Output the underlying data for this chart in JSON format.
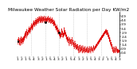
{
  "title": "Milwaukee Weather Solar Radiation per Day KW/m2",
  "background_color": "#ffffff",
  "line_color": "#dd0000",
  "marker_color": "#000000",
  "grid_color": "#bbbbbb",
  "ylim": [
    0.0,
    5.4
  ],
  "ytick_vals": [
    4.9,
    4.4,
    3.9,
    3.4,
    2.9,
    2.4,
    1.9,
    1.4,
    0.9,
    0.4
  ],
  "vline_positions": [
    52,
    104,
    157,
    210,
    262,
    314
  ],
  "title_fontsize": 4.2,
  "tick_fontsize": 3.2,
  "values": [
    1.8,
    2.1,
    1.5,
    1.9,
    2.3,
    1.7,
    2.0,
    1.4,
    1.6,
    2.2,
    1.8,
    1.3,
    1.9,
    2.4,
    1.6,
    2.1,
    1.5,
    1.8,
    2.3,
    1.7,
    2.2,
    1.6,
    2.0,
    2.4,
    1.9,
    2.5,
    2.1,
    2.7,
    2.3,
    2.9,
    2.5,
    3.1,
    2.7,
    2.2,
    2.8,
    3.3,
    2.9,
    2.5,
    3.0,
    2.6,
    3.2,
    2.8,
    3.4,
    3.0,
    3.6,
    3.2,
    2.8,
    3.4,
    3.0,
    3.6,
    3.2,
    3.8,
    3.4,
    4.0,
    3.6,
    3.2,
    3.8,
    3.4,
    4.0,
    3.6,
    4.2,
    3.8,
    4.4,
    4.0,
    3.6,
    4.2,
    3.8,
    4.4,
    4.0,
    4.6,
    4.2,
    3.8,
    4.4,
    4.0,
    4.6,
    4.2,
    4.8,
    4.4,
    4.0,
    4.6,
    4.2,
    4.8,
    4.4,
    4.9,
    4.5,
    4.1,
    4.7,
    4.3,
    4.9,
    4.5,
    4.1,
    4.7,
    4.3,
    4.9,
    4.5,
    4.1,
    4.7,
    4.3,
    4.8,
    4.4,
    4.9,
    4.5,
    4.1,
    4.6,
    4.2,
    4.8,
    4.4,
    4.9,
    4.5,
    4.1,
    4.6,
    4.2,
    4.7,
    4.3,
    4.8,
    4.4,
    4.9,
    4.5,
    4.1,
    4.6,
    4.2,
    4.7,
    4.3,
    4.8,
    4.4,
    4.0,
    4.5,
    4.1,
    4.6,
    4.2,
    4.7,
    4.3,
    3.9,
    4.4,
    4.0,
    4.5,
    4.1,
    3.7,
    4.2,
    3.8,
    4.3,
    3.9,
    3.5,
    4.0,
    3.6,
    3.2,
    3.7,
    3.3,
    3.8,
    3.4,
    3.0,
    3.5,
    3.1,
    2.7,
    3.2,
    2.8,
    3.3,
    2.9,
    2.5,
    3.0,
    2.6,
    2.2,
    2.7,
    2.3,
    2.8,
    2.4,
    3.4,
    3.0,
    2.6,
    3.1,
    2.7,
    2.3,
    2.8,
    2.4,
    2.9,
    2.5,
    3.5,
    3.1,
    2.7,
    3.2,
    2.8,
    2.4,
    2.9,
    2.5,
    2.1,
    2.6,
    2.2,
    1.8,
    2.3,
    1.9,
    2.4,
    2.0,
    1.6,
    2.1,
    1.7,
    1.3,
    1.8,
    2.3,
    1.9,
    1.5,
    2.0,
    1.6,
    2.1,
    1.7,
    1.3,
    1.8,
    2.3,
    1.9,
    1.5,
    2.0,
    1.6,
    1.2,
    1.7,
    1.3,
    0.9,
    1.4,
    1.9,
    1.5,
    1.1,
    1.6,
    1.2,
    0.8,
    1.3,
    0.9,
    1.4,
    1.0,
    1.5,
    1.1,
    0.7,
    1.2,
    0.8,
    0.4,
    0.9,
    1.3,
    0.9,
    0.5,
    1.0,
    1.4,
    1.0,
    0.6,
    1.1,
    0.7,
    1.2,
    0.8,
    0.4,
    0.9,
    1.3,
    0.9,
    0.5,
    1.0,
    0.6,
    1.1,
    0.7,
    0.4,
    0.8,
    1.2,
    0.8,
    0.5,
    0.9,
    0.6,
    1.0,
    0.7,
    0.4,
    0.8,
    1.2,
    0.9,
    0.5,
    1.0,
    0.7,
    0.4,
    0.8,
    1.2,
    0.9,
    0.6,
    1.0,
    0.7,
    0.4,
    0.8,
    1.2,
    0.9,
    0.6,
    1.0,
    0.7,
    1.1,
    0.8,
    0.5,
    0.9,
    1.3,
    1.0,
    0.7,
    1.1,
    0.8,
    1.2,
    0.9,
    1.3,
    1.0,
    1.4,
    1.1,
    1.5,
    1.2,
    1.6,
    1.3,
    1.7,
    1.4,
    1.8,
    1.5,
    1.9,
    1.6,
    2.0,
    1.7,
    2.1,
    1.8,
    2.2,
    1.9,
    2.3,
    2.0,
    2.4,
    2.1,
    2.5,
    2.2,
    2.6,
    2.3,
    2.7,
    2.4,
    2.8,
    2.5,
    2.9,
    2.6,
    3.0,
    2.7,
    3.1,
    2.8,
    3.2,
    2.9,
    3.3,
    3.0,
    2.6,
    3.1,
    2.7,
    3.2,
    2.8,
    2.4,
    2.9,
    2.5,
    2.1,
    2.6,
    2.2,
    1.8,
    2.3,
    1.9,
    1.5,
    2.0,
    1.6,
    1.2,
    1.7,
    1.3,
    0.9,
    1.4,
    1.0,
    0.6,
    1.1,
    0.7,
    0.4,
    0.8,
    1.2,
    0.9,
    0.5,
    1.0,
    0.7,
    0.4,
    0.8,
    1.2,
    0.9,
    0.6,
    1.0,
    0.7,
    0.4,
    0.8,
    0.5,
    0.9,
    0.6,
    0.4,
    0.7,
    0.5,
    0.8,
    0.6
  ],
  "special_marker_indices": [
    0,
    104,
    157
  ],
  "xtick_labels": [
    "1",
    "2",
    "1",
    "5",
    "4",
    "3",
    "2",
    "1",
    "5",
    "4",
    "3",
    "2",
    "1",
    "5",
    "4",
    "3",
    "2",
    "1",
    "5",
    "4",
    "3",
    "2",
    "1",
    "5",
    "4",
    "3"
  ],
  "num_xticks": 26
}
